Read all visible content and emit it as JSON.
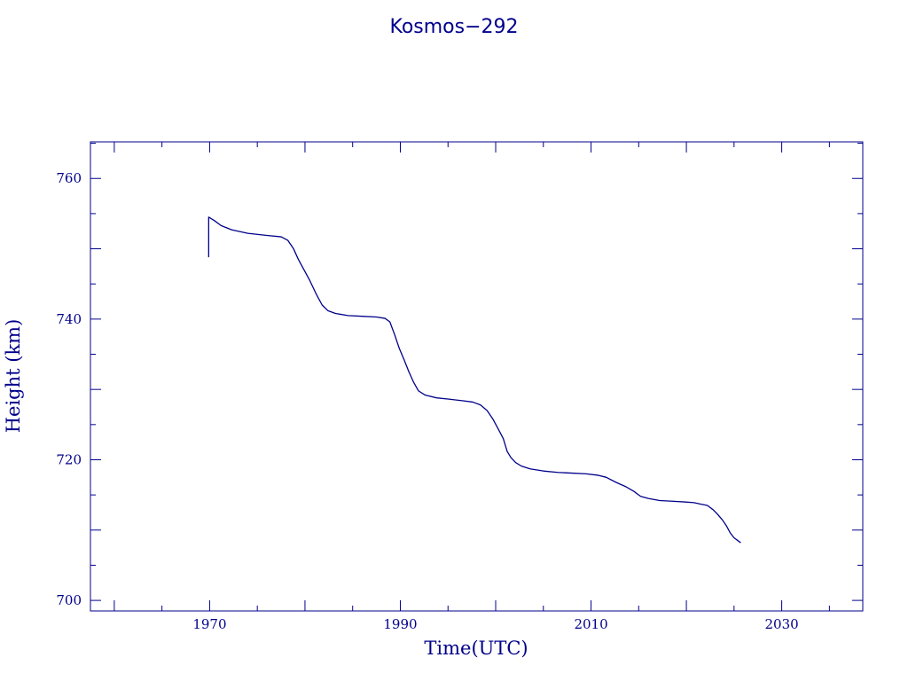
{
  "chart_data": {
    "type": "line",
    "title": "Kosmos−292",
    "xlabel": "Time(UTC)",
    "ylabel": "Height (km)",
    "xlim": [
      1957.5,
      2038.5
    ],
    "ylim": [
      698.5,
      765.2
    ],
    "x_major_ticks": [
      1970,
      1990,
      2010,
      2030
    ],
    "y_major_ticks": [
      700,
      720,
      740,
      760
    ],
    "x_tick_labels": [
      "1970",
      "1990",
      "2010",
      "2030"
    ],
    "y_tick_labels": [
      "700",
      "720",
      "740",
      "760"
    ],
    "grid": false,
    "line_color": "#00008b",
    "series": [
      {
        "x": [
          1969.9,
          1969.9,
          1970.5,
          1971.2,
          1972.3,
          1974.0,
          1976.0,
          1977.5,
          1978.2,
          1978.8,
          1979.3,
          1979.9,
          1980.5,
          1981.2,
          1981.8,
          1982.4,
          1983.2,
          1984.5,
          1986.0,
          1987.5,
          1988.4,
          1988.9,
          1989.4,
          1989.9,
          1990.4,
          1990.9,
          1991.4,
          1991.9,
          1992.6,
          1993.8,
          1995.2,
          1996.5,
          1997.6,
          1998.4,
          1999.1,
          1999.7,
          2000.3,
          2000.8,
          2001.2,
          2001.6,
          2002.1,
          2002.7,
          2003.6,
          2005.0,
          2006.5,
          2008.0,
          2009.5,
          2010.7,
          2011.6,
          2012.6,
          2013.6,
          2014.5,
          2015.2,
          2016.0,
          2017.2,
          2018.5,
          2019.8,
          2020.8,
          2021.5,
          2022.2,
          2022.8,
          2023.3,
          2023.8,
          2024.2,
          2024.6,
          2025.0,
          2025.4,
          2025.7
        ],
        "y": [
          748.8,
          754.5,
          754.0,
          753.3,
          752.7,
          752.2,
          751.9,
          751.7,
          751.2,
          750.0,
          748.5,
          747.0,
          745.5,
          743.5,
          742.0,
          741.2,
          740.8,
          740.5,
          740.4,
          740.3,
          740.1,
          739.6,
          737.8,
          735.8,
          734.2,
          732.5,
          731.0,
          729.8,
          729.2,
          728.8,
          728.6,
          728.4,
          728.2,
          727.8,
          727.0,
          725.8,
          724.3,
          723.0,
          721.2,
          720.3,
          719.6,
          719.1,
          718.7,
          718.4,
          718.2,
          718.1,
          718.0,
          717.8,
          717.5,
          716.8,
          716.2,
          715.5,
          714.8,
          714.5,
          714.2,
          714.1,
          714.0,
          713.9,
          713.7,
          713.5,
          712.9,
          712.2,
          711.4,
          710.6,
          709.6,
          708.9,
          708.5,
          708.2
        ]
      }
    ]
  }
}
